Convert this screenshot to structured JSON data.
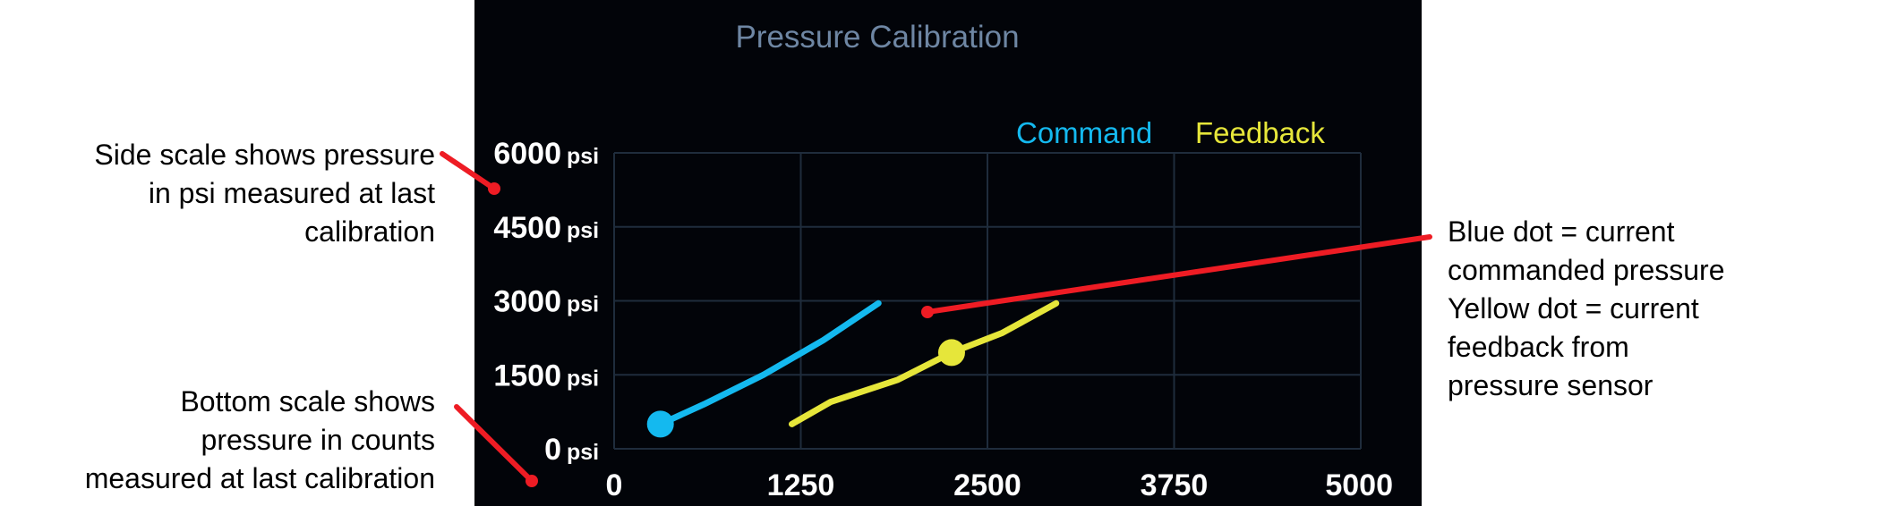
{
  "annotations": {
    "side_scale": [
      "Side scale shows pressure",
      "in psi measured at last",
      "calibration"
    ],
    "bottom_scale": [
      "Bottom scale shows",
      "pressure in counts",
      "measured at last calibration"
    ],
    "dots": [
      "Blue dot = current",
      "commanded pressure",
      "Yellow dot = current",
      "feedback from",
      "pressure sensor"
    ]
  },
  "colors": {
    "panel_bg": "#020409",
    "grid": "#1f2c3c",
    "title": "#6e86a3",
    "command": "#14b9ef",
    "feedback": "#e6e63a",
    "axis_text": "#ffffff",
    "pointer": "#ee1c24"
  },
  "chart_data": {
    "type": "line",
    "title": "Pressure Calibration",
    "y_unit": "psi",
    "xlim": [
      0,
      5000
    ],
    "ylim": [
      0,
      6000
    ],
    "x_ticks": [
      "0",
      "1250",
      "2500",
      "3750",
      "5000"
    ],
    "y_ticks": [
      "6000",
      "4500",
      "3000",
      "1500",
      "0"
    ],
    "grid": true,
    "legend_placement": "top-right",
    "series": [
      {
        "name": "Command",
        "x": [
          310,
          600,
          1000,
          1400,
          1770
        ],
        "y": [
          500,
          900,
          1500,
          2200,
          2950
        ],
        "current_point": {
          "x": 310,
          "y": 500
        }
      },
      {
        "name": "Feedback",
        "x": [
          1190,
          1450,
          1900,
          2260,
          2600,
          2960
        ],
        "y": [
          500,
          950,
          1400,
          1950,
          2350,
          2950
        ],
        "current_point": {
          "x": 2260,
          "y": 1950
        }
      }
    ]
  }
}
